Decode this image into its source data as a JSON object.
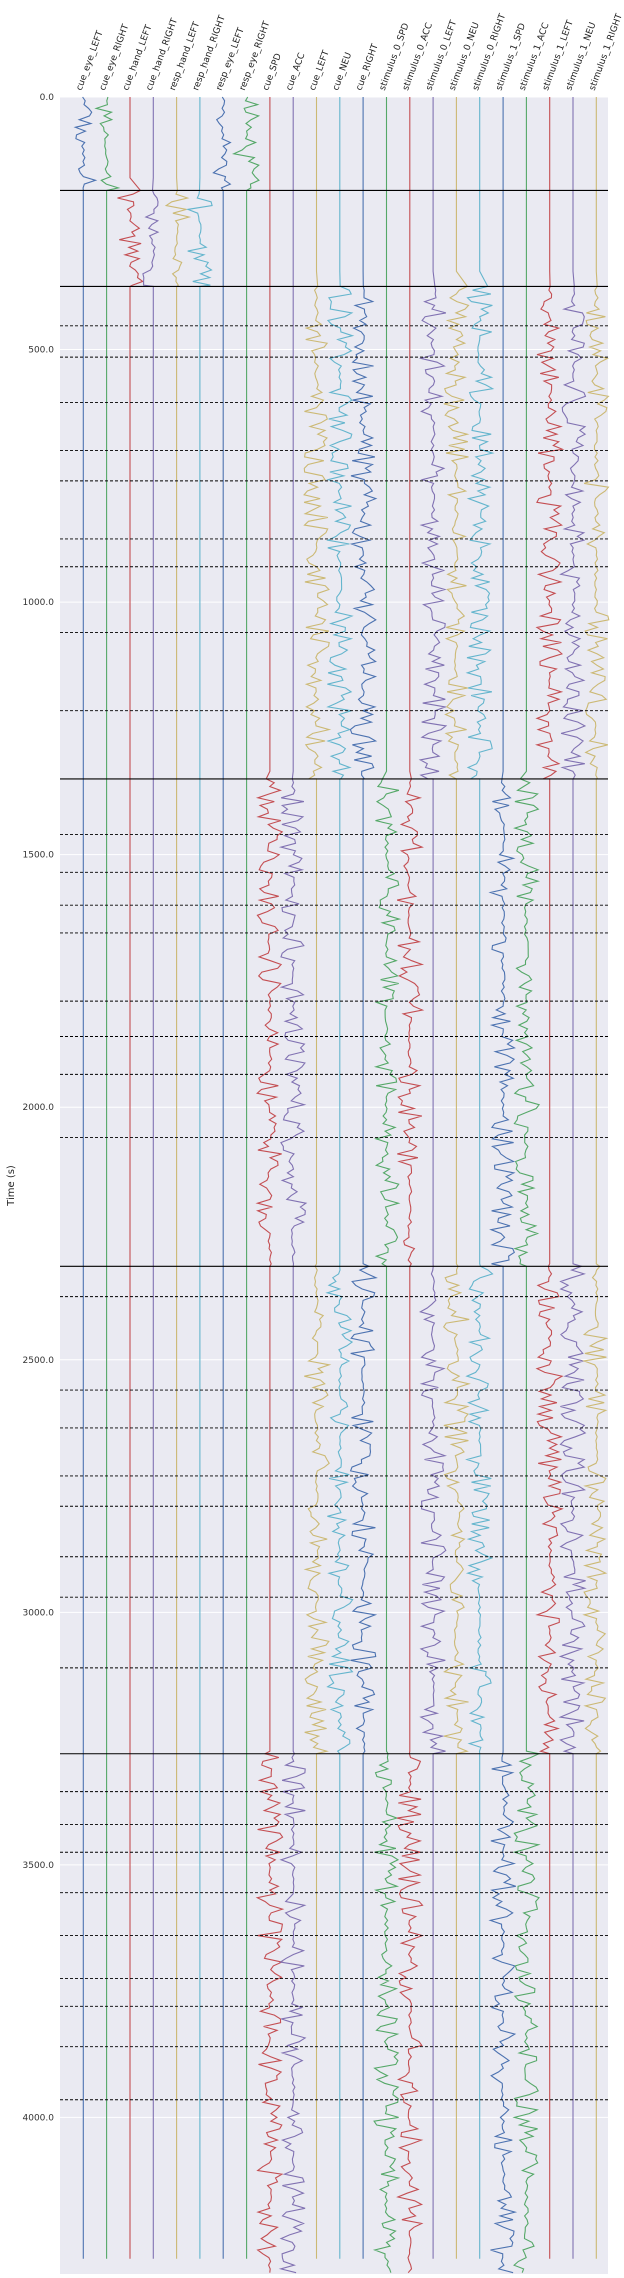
{
  "chart_data": {
    "type": "line",
    "title": "",
    "xlabel": "",
    "ylabel": "Time (s)",
    "ylim": [
      0,
      4310
    ],
    "y_inverted": true,
    "yticks": [
      0.0,
      500.0,
      1000.0,
      1500.0,
      2000.0,
      2500.0,
      3000.0,
      3500.0,
      4000.0
    ],
    "ytick_labels": [
      "0.0",
      "500.0",
      "1000.0",
      "1500.0",
      "2000.0",
      "2500.0",
      "3000.0",
      "3500.0",
      "4000.0"
    ],
    "grid": true,
    "legend": "none",
    "colors": {
      "background": "#EAEAF2",
      "grid": "#FFFFFF",
      "solid_line": "#000000",
      "dashed_line": "#000000"
    },
    "channels": [
      {
        "name": "cue_eye_LEFT",
        "color": "#4C72B0"
      },
      {
        "name": "cue_eye_RIGHT",
        "color": "#55A868"
      },
      {
        "name": "cue_hand_LEFT",
        "color": "#C44E52"
      },
      {
        "name": "cue_hand_RIGHT",
        "color": "#8172B2"
      },
      {
        "name": "resp_hand_LEFT",
        "color": "#CCB974"
      },
      {
        "name": "resp_hand_RIGHT",
        "color": "#64B5CD"
      },
      {
        "name": "resp_eye_LEFT",
        "color": "#4C72B0"
      },
      {
        "name": "resp_eye_RIGHT",
        "color": "#55A868"
      },
      {
        "name": "cue_SPD",
        "color": "#C44E52"
      },
      {
        "name": "cue_ACC",
        "color": "#8172B2"
      },
      {
        "name": "cue_LEFT",
        "color": "#CCB974"
      },
      {
        "name": "cue_NEU",
        "color": "#64B5CD"
      },
      {
        "name": "cue_RIGHT",
        "color": "#4C72B0"
      },
      {
        "name": "stimulus_0_SPD",
        "color": "#55A868"
      },
      {
        "name": "stimulus_0_ACC",
        "color": "#C44E52"
      },
      {
        "name": "stimulus_0_LEFT",
        "color": "#8172B2"
      },
      {
        "name": "stimulus_0_NEU",
        "color": "#CCB974"
      },
      {
        "name": "stimulus_0_RIGHT",
        "color": "#64B5CD"
      },
      {
        "name": "stimulus_1_SPD",
        "color": "#4C72B0"
      },
      {
        "name": "stimulus_1_ACC",
        "color": "#55A868"
      },
      {
        "name": "stimulus_1_LEFT",
        "color": "#C44E52"
      },
      {
        "name": "stimulus_1_NEU",
        "color": "#8172B2"
      },
      {
        "name": "stimulus_1_RIGHT",
        "color": "#CCB974"
      }
    ],
    "blocks": [
      {
        "start": 0,
        "end": 185,
        "active_channels": [
          "cue_eye_LEFT",
          "cue_eye_RIGHT",
          "resp_eye_LEFT",
          "resp_eye_RIGHT"
        ]
      },
      {
        "start": 185,
        "end": 375,
        "active_channels": [
          "cue_hand_LEFT",
          "cue_hand_RIGHT",
          "resp_hand_LEFT",
          "resp_hand_RIGHT"
        ]
      },
      {
        "start": 375,
        "end": 1350,
        "active_channels": [
          "cue_LEFT",
          "cue_NEU",
          "cue_RIGHT",
          "stimulus_0_LEFT",
          "stimulus_0_NEU",
          "stimulus_0_RIGHT",
          "stimulus_1_LEFT",
          "stimulus_1_NEU",
          "stimulus_1_RIGHT"
        ]
      },
      {
        "start": 1350,
        "end": 2315,
        "active_channels": [
          "cue_SPD",
          "cue_ACC",
          "stimulus_0_SPD",
          "stimulus_0_ACC",
          "stimulus_1_SPD",
          "stimulus_1_ACC"
        ]
      },
      {
        "start": 2315,
        "end": 3280,
        "active_channels": [
          "cue_LEFT",
          "cue_NEU",
          "cue_RIGHT",
          "stimulus_0_LEFT",
          "stimulus_0_NEU",
          "stimulus_0_RIGHT",
          "stimulus_1_LEFT",
          "stimulus_1_NEU",
          "stimulus_1_RIGHT"
        ]
      },
      {
        "start": 3280,
        "end": 4310,
        "active_channels": [
          "cue_SPD",
          "cue_ACC",
          "stimulus_0_SPD",
          "stimulus_0_ACC",
          "stimulus_1_SPD",
          "stimulus_1_ACC"
        ]
      }
    ],
    "block_boundaries": [
      185,
      375,
      1350,
      2315,
      3280
    ],
    "trial_boundaries": [
      453,
      515,
      605,
      700,
      760,
      875,
      930,
      1060,
      1215,
      1460,
      1535,
      1600,
      1655,
      1790,
      1860,
      1935,
      2060,
      2375,
      2560,
      2635,
      2730,
      2790,
      2890,
      2970,
      3110,
      3355,
      3420,
      3475,
      3555,
      3640,
      3725,
      3780,
      3860,
      3965
    ]
  }
}
